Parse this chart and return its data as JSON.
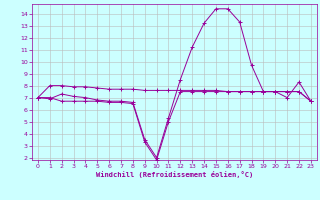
{
  "x_values": [
    0,
    1,
    2,
    3,
    4,
    5,
    6,
    7,
    8,
    9,
    10,
    11,
    12,
    13,
    14,
    15,
    16,
    17,
    18,
    19,
    20,
    21,
    22,
    23
  ],
  "line1_y": [
    7.0,
    6.9,
    7.3,
    7.1,
    7.0,
    6.8,
    6.7,
    6.7,
    6.6,
    3.5,
    2.0,
    5.3,
    8.5,
    11.2,
    13.2,
    14.4,
    14.4,
    13.3,
    9.7,
    7.5,
    7.5,
    7.0,
    8.3,
    6.7
  ],
  "line2_y": [
    7.0,
    8.0,
    8.0,
    7.9,
    7.9,
    7.8,
    7.7,
    7.7,
    7.7,
    7.6,
    7.6,
    7.6,
    7.6,
    7.6,
    7.6,
    7.6,
    7.5,
    7.5,
    7.5,
    7.5,
    7.5,
    7.5,
    7.5,
    6.7
  ],
  "line3_y": [
    7.0,
    7.0,
    6.7,
    6.7,
    6.7,
    6.7,
    6.6,
    6.6,
    6.5,
    3.3,
    1.8,
    5.0,
    7.5,
    7.5,
    7.5,
    7.5,
    7.5,
    7.5,
    7.5,
    7.5,
    7.5,
    7.5,
    7.5,
    6.7
  ],
  "line_color": "#990099",
  "background_color": "#ccffff",
  "grid_color": "#bbbbbb",
  "xlabel": "Windchill (Refroidissement éolien,°C)",
  "ylim": [
    1.8,
    14.8
  ],
  "xlim": [
    -0.5,
    23.5
  ],
  "yticks": [
    2,
    3,
    4,
    5,
    6,
    7,
    8,
    9,
    10,
    11,
    12,
    13,
    14
  ],
  "xticks": [
    0,
    1,
    2,
    3,
    4,
    5,
    6,
    7,
    8,
    9,
    10,
    11,
    12,
    13,
    14,
    15,
    16,
    17,
    18,
    19,
    20,
    21,
    22,
    23
  ]
}
